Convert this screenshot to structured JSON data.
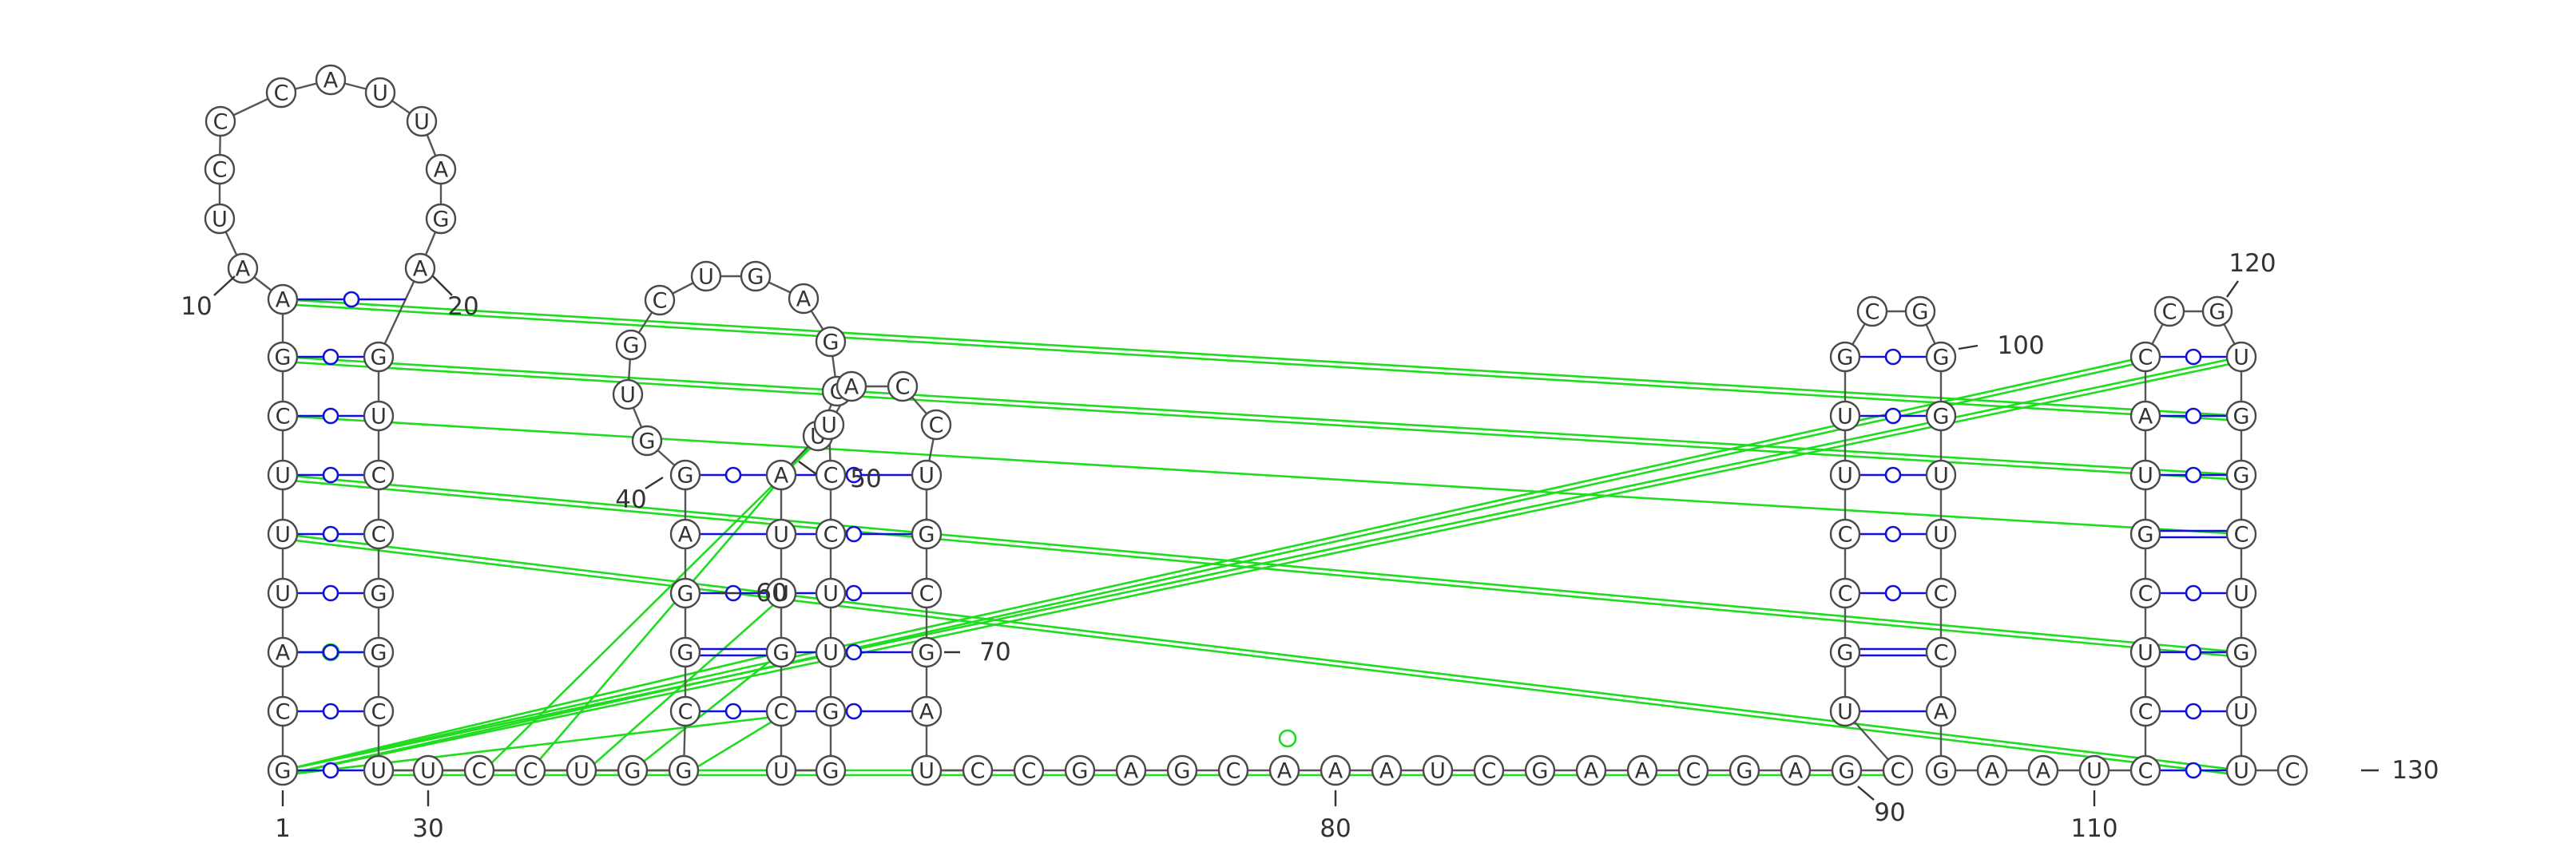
{
  "diagram": {
    "sequence": "GCAUUUCGAAUCCCAUUAGAGUCCGGCUUCCUGGCGGAGGUGCUGAGCUAUUGCUGGUUCCUACCUGCGAUCCGAGCAAAUCGAACGAGCUGCCUUGCGGGUUCCAGAAUCCUCGUACCGUGGCUGUUC",
    "position_labels": [
      "1",
      "10",
      "20",
      "30",
      "40",
      "50",
      "60",
      "70",
      "80",
      "90",
      "100",
      "110",
      "120",
      "130"
    ],
    "colors": {
      "backbone": "#555555",
      "canonical_pair": "#1010d8",
      "noncanonical_pair": "#1edc1e"
    },
    "pair_legend_note": ""
  }
}
